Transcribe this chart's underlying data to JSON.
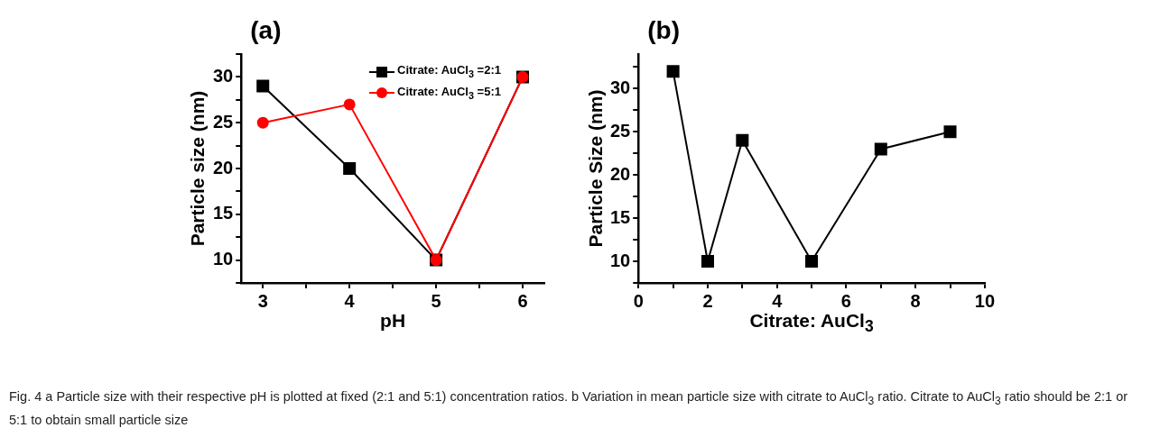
{
  "chart_data": [
    {
      "type": "line",
      "title": "(a)",
      "xlabel": "pH",
      "ylabel": "Particle size (nm)",
      "x": [
        3,
        4,
        5,
        6
      ],
      "series": [
        {
          "name": "Citrate: AuCl$_{3}$ =2:1",
          "color": "#000000",
          "marker": "square",
          "values": [
            29,
            20,
            10,
            30
          ]
        },
        {
          "name": "Citrate: AuCl$_{3}$ =5:1",
          "color": "#ff0000",
          "marker": "circle",
          "values": [
            25,
            27,
            10,
            30
          ]
        }
      ],
      "xlim": [
        2.75,
        6.25
      ],
      "xticks": [
        3,
        {
          "value": 3.5,
          "label": null
        },
        4,
        {
          "value": 4.5,
          "label": null
        },
        5,
        {
          "value": 5.5,
          "label": null
        },
        6
      ],
      "ylim": [
        7.5,
        32.5
      ],
      "yticks": [
        {
          "value": 7.5,
          "label": null
        },
        10,
        {
          "value": 12.5,
          "label": null
        },
        15,
        {
          "value": 17.5,
          "label": null
        },
        20,
        {
          "value": 22.5,
          "label": null
        },
        25,
        {
          "value": 27.5,
          "label": null
        },
        30,
        {
          "value": 32.5,
          "label": null
        }
      ],
      "grid": false,
      "legend": "top right",
      "line_style": "solid",
      "annotations": [
        "Fig. 4 a Particle size with their respective pH is plotted at fixed (2:1 and 5:1) concentration ratios. b Variation in mean particle size with citrate to AuCl$_{3}$ ratio. Citrate to AuCl$_{3}$ ratio should be 2:1 or 5:1 to obtain small particle size"
      ]
    },
    {
      "type": "line",
      "title": "(b)",
      "xlabel": "Citrate: AuCl$_{3}$",
      "ylabel": "Particle Size (nm)",
      "x": [
        1,
        2,
        3,
        5,
        7,
        9
      ],
      "series": [
        {
          "color": "#000000",
          "values": [
            32,
            10,
            24,
            10,
            23,
            25
          ]
        }
      ],
      "xlim": [
        0,
        10
      ],
      "xticks": [
        0,
        {
          "value": 1,
          "label": null
        },
        2,
        {
          "value": 3,
          "label": null
        },
        4,
        {
          "value": 5,
          "label": null
        },
        6,
        {
          "value": 7,
          "label": null
        },
        8,
        {
          "value": 9,
          "label": null
        },
        10
      ],
      "ylim": [
        7.5,
        34
      ],
      "yticks": [
        {
          "value": 7.5,
          "label": null
        },
        10,
        {
          "value": 12.5,
          "label": null
        },
        15,
        {
          "value": 17.5,
          "label": null
        },
        20,
        {
          "value": 22.5,
          "label": null
        },
        25,
        {
          "value": 27.5,
          "label": null
        },
        30,
        {
          "value": 32.5,
          "label": null
        }
      ],
      "grid": false,
      "legend": false,
      "marker": "square",
      "line_style": "solid"
    }
  ]
}
